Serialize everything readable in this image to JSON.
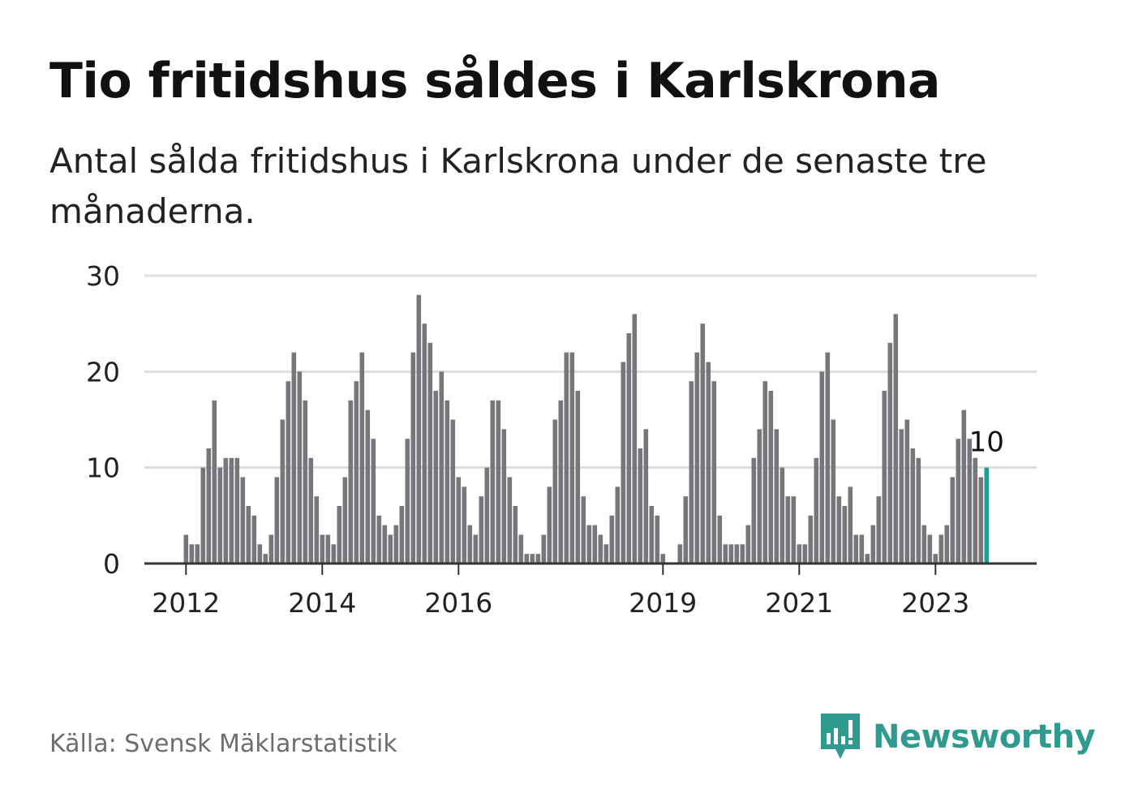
{
  "title": "Tio fritidshus såldes i Karlskrona",
  "subtitle": "Antal sålda fritidshus i Karlskrona under de senaste tre månaderna.",
  "source": "Källa: Svensk Mäklarstatistik",
  "brand": {
    "name": "Newsworthy",
    "icon": "newsworthy-logo-icon",
    "color": "#2f9a8e"
  },
  "colors": {
    "bar": "#77767b",
    "highlight": "#1e9e92",
    "grid": "#dddddd",
    "axis": "#333333",
    "text": "#222222"
  },
  "chart_data": {
    "type": "bar",
    "title": "Tio fritidshus såldes i Karlskrona",
    "xlabel": "",
    "ylabel": "",
    "ylim": [
      0,
      30
    ],
    "yticks": [
      0,
      10,
      20,
      30
    ],
    "xticks": [
      "2012",
      "2014",
      "2016",
      "2019",
      "2021",
      "2023"
    ],
    "grid": true,
    "highlight_label": "10",
    "values": [
      3,
      2,
      2,
      10,
      12,
      17,
      10,
      11,
      11,
      11,
      9,
      6,
      5,
      2,
      1,
      3,
      9,
      15,
      19,
      22,
      20,
      17,
      11,
      7,
      3,
      3,
      2,
      6,
      9,
      17,
      19,
      22,
      16,
      13,
      5,
      4,
      3,
      4,
      6,
      13,
      22,
      28,
      25,
      23,
      18,
      20,
      17,
      15,
      9,
      8,
      4,
      3,
      7,
      10,
      17,
      17,
      14,
      9,
      6,
      3,
      1,
      1,
      1,
      3,
      8,
      15,
      17,
      22,
      22,
      18,
      7,
      4,
      4,
      3,
      2,
      5,
      8,
      21,
      24,
      26,
      12,
      14,
      6,
      5,
      1,
      0,
      0,
      2,
      7,
      19,
      22,
      25,
      21,
      19,
      5,
      2,
      2,
      2,
      2,
      4,
      11,
      14,
      19,
      18,
      14,
      10,
      7,
      7,
      2,
      2,
      5,
      11,
      20,
      22,
      15,
      7,
      6,
      8,
      3,
      3,
      1,
      4,
      7,
      18,
      23,
      26,
      14,
      15,
      12,
      11,
      4,
      3,
      1,
      3,
      4,
      9,
      13,
      16,
      13,
      11,
      9,
      10
    ]
  }
}
